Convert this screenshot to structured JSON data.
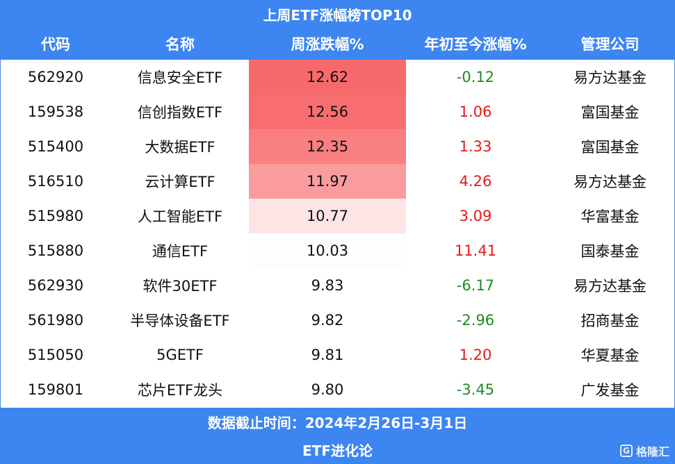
{
  "title": "上周ETF涨幅榜TOP10",
  "headers": {
    "code": "代码",
    "name": "名称",
    "week": "周涨跌幅%",
    "ytd": "年初至今涨幅%",
    "company": "管理公司"
  },
  "colors": {
    "header_bg": "#3d85f0",
    "positive": "#e31a1a",
    "negative": "#1e8a1e",
    "heat_max": "#f8696b"
  },
  "rows": [
    {
      "code": "562920",
      "name": "信息安全ETF",
      "week": "12.62",
      "ytd": "-0.12",
      "company": "易方达基金"
    },
    {
      "code": "159538",
      "name": "信创指数ETF",
      "week": "12.56",
      "ytd": "1.06",
      "company": "富国基金"
    },
    {
      "code": "515400",
      "name": "大数据ETF",
      "week": "12.35",
      "ytd": "1.33",
      "company": "富国基金"
    },
    {
      "code": "516510",
      "name": "云计算ETF",
      "week": "11.97",
      "ytd": "4.26",
      "company": "易方达基金"
    },
    {
      "code": "515980",
      "name": "人工智能ETF",
      "week": "10.77",
      "ytd": "3.09",
      "company": "华富基金"
    },
    {
      "code": "515880",
      "name": "通信ETF",
      "week": "10.03",
      "ytd": "11.41",
      "company": "国泰基金"
    },
    {
      "code": "562930",
      "name": "软件30ETF",
      "week": "9.83",
      "ytd": "-6.17",
      "company": "易方达基金"
    },
    {
      "code": "561980",
      "name": "半导体设备ETF",
      "week": "9.82",
      "ytd": "-2.96",
      "company": "招商基金"
    },
    {
      "code": "515050",
      "name": "5GETF",
      "week": "9.81",
      "ytd": "1.20",
      "company": "华夏基金"
    },
    {
      "code": "159801",
      "name": "芯片ETF龙头",
      "week": "9.80",
      "ytd": "-3.45",
      "company": "广发基金"
    }
  ],
  "footer": {
    "date_range": "数据截止时间：2024年2月26日-3月1日",
    "source": "ETF进化论"
  },
  "watermark": {
    "logo_glyph": "G",
    "text": "格隆汇"
  }
}
